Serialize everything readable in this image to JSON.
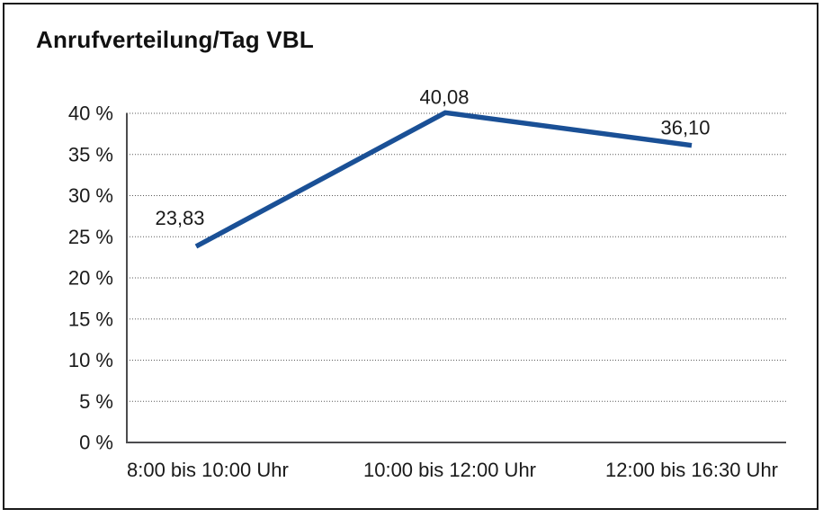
{
  "window": {
    "background": "#ffffff",
    "border_color": "#1a1a1a"
  },
  "chart_data": {
    "type": "line",
    "title": "Anrufverteilung/Tag VBL",
    "xlabel": "",
    "ylabel": "",
    "categories": [
      "8:00 bis 10:00 Uhr",
      "10:00 bis 12:00 Uhr",
      "12:00 bis 16:30 Uhr"
    ],
    "values": [
      23.83,
      40.08,
      36.1
    ],
    "data_labels": [
      "23,83",
      "40,08",
      "36,10"
    ],
    "ylim": [
      0,
      40
    ],
    "y_ticks": [
      {
        "value": 0,
        "label": "0 %"
      },
      {
        "value": 5,
        "label": "5 %"
      },
      {
        "value": 10,
        "label": "10 %"
      },
      {
        "value": 15,
        "label": "15 %"
      },
      {
        "value": 20,
        "label": "20 %"
      },
      {
        "value": 25,
        "label": "25 %"
      },
      {
        "value": 30,
        "label": "30 %"
      },
      {
        "value": 35,
        "label": "35 %"
      },
      {
        "value": 40,
        "label": "40 %"
      }
    ],
    "grid": "horizontal-dotted",
    "legend": "none",
    "colors": {
      "line": "#1a5096",
      "text": "#1a1a1a",
      "axis": "#4c4c4e",
      "grid": "#5a5a5a"
    }
  }
}
